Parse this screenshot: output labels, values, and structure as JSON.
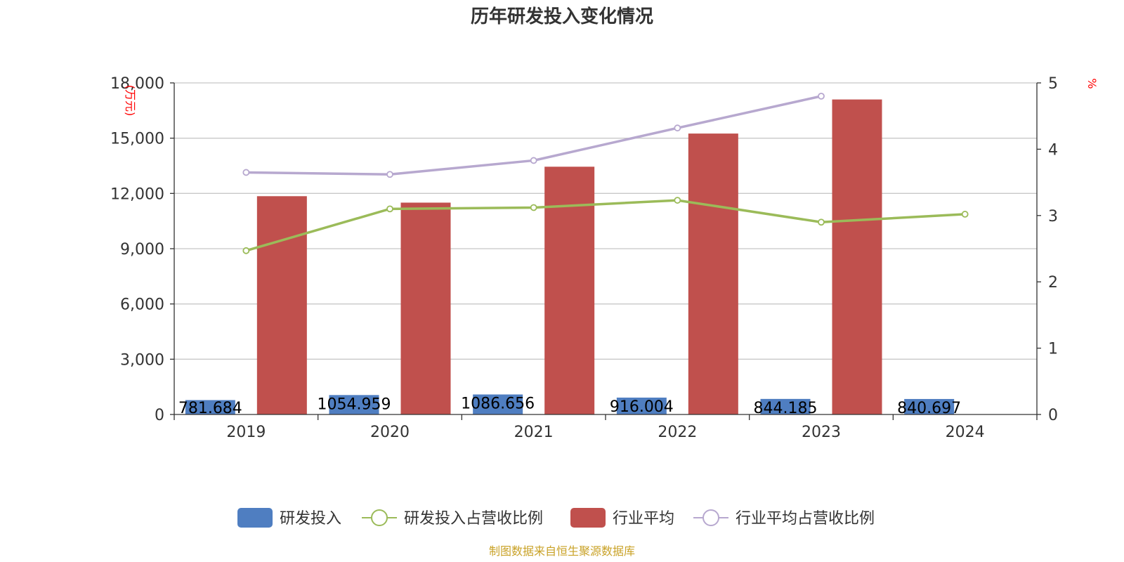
{
  "chart_data": {
    "type": "bar",
    "title": "历年研发投入变化情况",
    "categories": [
      "2019",
      "2020",
      "2021",
      "2022",
      "2023",
      "2024"
    ],
    "y_left": {
      "unit": "万元",
      "ylim": [
        0,
        18000
      ],
      "ticks": [
        "0",
        "3,000",
        "6,000",
        "9,000",
        "12,000",
        "15,000",
        "18,000"
      ],
      "tick_values": [
        0,
        3000,
        6000,
        9000,
        12000,
        15000,
        18000
      ]
    },
    "y_right": {
      "unit": "%",
      "ylim": [
        0,
        5
      ],
      "ticks": [
        "0",
        "1",
        "2",
        "3",
        "4",
        "5"
      ],
      "tick_values": [
        0,
        1,
        2,
        3,
        4,
        5
      ]
    },
    "series": [
      {
        "name": "研发投入",
        "kind": "bar",
        "axis": "left",
        "color": "#4f7ec1",
        "values": [
          781.684,
          1054.959,
          1086.656,
          916.004,
          844.185,
          840.697
        ],
        "labels": [
          "781.684",
          "1054.959",
          "1086.656",
          "916.004",
          "844.185",
          "840.697"
        ]
      },
      {
        "name": "研发投入占营收比例",
        "kind": "line",
        "axis": "right",
        "color": "#9bbb59",
        "values": [
          2.47,
          3.1,
          3.12,
          3.23,
          2.9,
          3.02
        ]
      },
      {
        "name": "行业平均",
        "kind": "bar",
        "axis": "left",
        "color": "#c0504d",
        "values": [
          11850,
          11500,
          13450,
          15250,
          17100,
          null
        ]
      },
      {
        "name": "行业平均占营收比例",
        "kind": "line",
        "axis": "right",
        "color": "#b7a8cf",
        "values": [
          3.65,
          3.62,
          3.83,
          4.32,
          4.8,
          null
        ]
      }
    ],
    "legend_position": "bottom",
    "grid": true
  },
  "source": "制图数据来自恒生聚源数据库"
}
